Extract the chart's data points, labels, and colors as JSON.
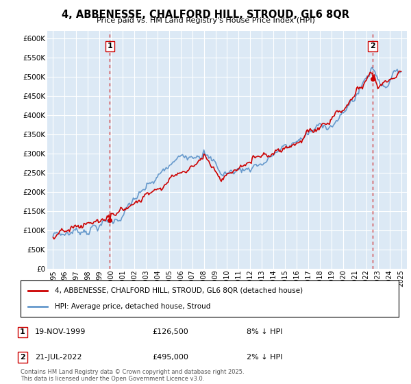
{
  "title": "4, ABBENESSE, CHALFORD HILL, STROUD, GL6 8QR",
  "subtitle": "Price paid vs. HM Land Registry's House Price Index (HPI)",
  "legend_line1": "4, ABBENESSE, CHALFORD HILL, STROUD, GL6 8QR (detached house)",
  "legend_line2": "HPI: Average price, detached house, Stroud",
  "annotation1_date": "19-NOV-1999",
  "annotation1_price": "£126,500",
  "annotation1_note": "8% ↓ HPI",
  "annotation2_date": "21-JUL-2022",
  "annotation2_price": "£495,000",
  "annotation2_note": "2% ↓ HPI",
  "price_color": "#cc0000",
  "hpi_color": "#6699cc",
  "plot_bg_color": "#dce9f5",
  "background_color": "#ffffff",
  "grid_color": "#ffffff",
  "ylim": [
    0,
    620000
  ],
  "xlim": [
    1994.5,
    2025.5
  ],
  "yticks": [
    0,
    50000,
    100000,
    150000,
    200000,
    250000,
    300000,
    350000,
    400000,
    450000,
    500000,
    550000,
    600000
  ],
  "footer": "Contains HM Land Registry data © Crown copyright and database right 2025.\nThis data is licensed under the Open Government Licence v3.0.",
  "sale1_x": 1999.89,
  "sale1_y": 126500,
  "sale2_x": 2022.55,
  "sale2_y": 495000
}
